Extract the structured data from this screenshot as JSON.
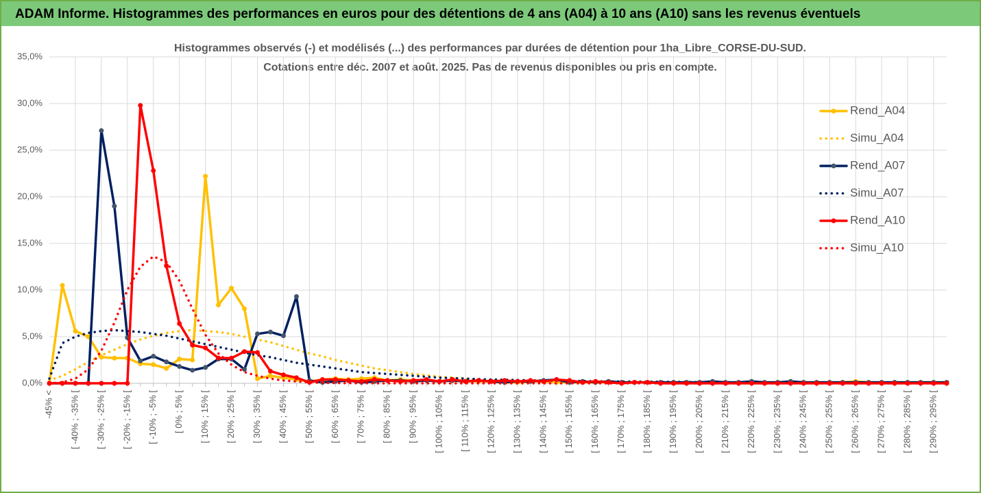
{
  "header": {
    "title": "ADAM Informe. Histogrammes des performances en euros pour des détentions de 4 ans (A04) à 10 ans (A10) sans les revenus éventuels"
  },
  "chart_data": {
    "type": "line",
    "title": [
      "Histogrammes observés (-) et modélisés (...) des performances par durées de détention pour 1ha_Libre_CORSE-DU-SUD.",
      "Cotations entre déc. 2007 et août. 2025. Pas de revenus disponibles ou pris en compte."
    ],
    "categories": [
      "-45% <",
      null,
      "[ -40% ; -35% [",
      null,
      "[ -30% ; -25% [",
      null,
      "[ -20% ; -15% [",
      null,
      "[ -10% ; -5% [",
      null,
      "[ 0% ; 5% [",
      null,
      "[ 10% ; 15% [",
      null,
      "[ 20% ; 25% [",
      null,
      "[ 30% ; 35% [",
      null,
      "[ 40% ; 45% [",
      null,
      "[ 50% ; 55% [",
      null,
      "[ 60% ; 65% [",
      null,
      "[ 70% ; 75% [",
      null,
      "[ 80% ; 85% [",
      null,
      "[ 90% ; 95% [",
      null,
      "[ 100% ; 105% [",
      null,
      "[ 110% ; 115% [",
      null,
      "[ 120% ; 125% [",
      null,
      "[ 130% ; 135% [",
      null,
      "[ 140% ; 145% [",
      null,
      "[ 150% ; 155% [",
      null,
      "[ 160% ; 165% [",
      null,
      "[ 170% ; 175% [",
      null,
      "[ 180% ; 185% [",
      null,
      "[ 190% ; 195% [",
      null,
      "[ 200% ; 205% [",
      null,
      "[ 210% ; 215% [",
      null,
      "[ 220% ; 225% [",
      null,
      "[ 230% ; 235% [",
      null,
      "[ 240% ; 245% [",
      null,
      "[ 250% ; 255% [",
      null,
      "[ 260% ; 265% [",
      null,
      "[ 270% ; 275% [",
      null,
      "[ 280% ; 285% [",
      null,
      "[ 290% ; 295% [",
      null
    ],
    "series": [
      {
        "name": "Rend_A04",
        "color": "#ffc000",
        "style": "solid",
        "values": [
          0,
          10.5,
          5.6,
          5.0,
          2.8,
          2.7,
          2.7,
          2.1,
          2.0,
          1.6,
          2.6,
          2.5,
          22.2,
          8.4,
          10.2,
          8.0,
          0.5,
          0.8,
          0.6,
          0.4,
          0.2,
          0.4,
          0.5,
          0.4,
          0.5,
          0.6,
          0.3,
          0.4,
          0.3,
          0.3,
          0.2,
          0.3,
          0.2,
          0.2,
          0.2,
          0.1,
          0.1,
          0.2,
          0.2,
          0.1,
          0.1,
          0.1,
          0.1,
          0.1,
          0.1,
          0.1,
          0.1,
          0.1,
          0.1,
          0.1,
          0.1,
          0.1,
          0.1,
          0.1,
          0.1,
          0.1,
          0.1,
          0.1,
          0.1,
          0.1,
          0.1,
          0.1,
          0.2,
          0.1,
          0.1,
          0.1,
          0.1,
          0.1,
          0.1,
          0.1
        ]
      },
      {
        "name": "Simu_A04",
        "color": "#ffc000",
        "style": "dotted",
        "values": [
          0.3,
          0.8,
          1.5,
          2.3,
          3.0,
          3.6,
          4.2,
          4.7,
          5.1,
          5.4,
          5.6,
          5.7,
          5.6,
          5.5,
          5.3,
          5.0,
          4.7,
          4.4,
          4.0,
          3.6,
          3.2,
          2.9,
          2.5,
          2.2,
          1.9,
          1.6,
          1.4,
          1.2,
          1.0,
          0.85,
          0.7,
          0.6,
          0.5,
          0.4,
          0.35,
          0.3,
          0.25,
          0.2,
          0.15,
          0.12,
          0.1,
          0.1,
          0.08,
          0.07,
          0.06,
          0.05,
          0.05,
          0.04,
          0.04,
          0.03,
          0.03,
          0.03,
          0.02,
          0.02,
          0.02,
          0.02,
          0.02,
          0.02,
          0.01,
          0.01,
          0.01,
          0.01,
          0.01,
          0.01,
          0.01,
          0.01,
          0.01,
          0.01,
          0.01,
          0.01
        ]
      },
      {
        "name": "Rend_A07",
        "color": "#002060",
        "style": "solid",
        "values": [
          0,
          0,
          0,
          0,
          27.1,
          19.0,
          4.9,
          2.4,
          2.9,
          2.3,
          1.8,
          1.4,
          1.7,
          2.6,
          2.6,
          1.5,
          5.3,
          5.5,
          5.1,
          9.3,
          0.3,
          0.1,
          0.2,
          0.3,
          0.1,
          0.2,
          0.3,
          0.3,
          0.2,
          0.3,
          0.2,
          0.3,
          0.2,
          0.3,
          0.2,
          0.1,
          0.2,
          0.2,
          0.3,
          0.4,
          0.1,
          0.2,
          0.1,
          0.2,
          0.1,
          0.1,
          0.1,
          0.1,
          0.1,
          0.1,
          0.1,
          0.2,
          0.1,
          0.1,
          0.2,
          0.1,
          0.1,
          0.2,
          0.1,
          0.1,
          0.1,
          0.1,
          0.1,
          0.1,
          0.1,
          0.1,
          0.1,
          0.1,
          0.1,
          0.1
        ]
      },
      {
        "name": "Simu_A07",
        "color": "#002060",
        "style": "dotted",
        "values": [
          0.5,
          4.3,
          5.0,
          5.4,
          5.6,
          5.7,
          5.6,
          5.5,
          5.3,
          5.1,
          4.8,
          4.5,
          4.2,
          3.9,
          3.6,
          3.3,
          3.0,
          2.8,
          2.5,
          2.2,
          2.0,
          1.8,
          1.6,
          1.4,
          1.2,
          1.1,
          1.0,
          0.9,
          0.8,
          0.7,
          0.6,
          0.55,
          0.5,
          0.45,
          0.4,
          0.38,
          0.35,
          0.32,
          0.3,
          0.28,
          0.26,
          0.24,
          0.22,
          0.2,
          0.19,
          0.18,
          0.17,
          0.16,
          0.15,
          0.14,
          0.13,
          0.12,
          0.12,
          0.11,
          0.11,
          0.1,
          0.1,
          0.1,
          0.09,
          0.09,
          0.09,
          0.08,
          0.08,
          0.08,
          0.07,
          0.07,
          0.07,
          0.07,
          0.06,
          0.06
        ]
      },
      {
        "name": "Rend_A10",
        "color": "#ff0000",
        "style": "solid",
        "values": [
          0,
          0,
          0,
          0,
          0,
          0,
          0,
          29.8,
          22.8,
          12.6,
          6.4,
          4.1,
          3.8,
          2.7,
          2.7,
          3.4,
          3.3,
          1.3,
          0.9,
          0.6,
          0.1,
          0.4,
          0.4,
          0.3,
          0.2,
          0.4,
          0.3,
          0.2,
          0.3,
          0.4,
          0.2,
          0.4,
          0.2,
          0.3,
          0.2,
          0.3,
          0.2,
          0.3,
          0.2,
          0.4,
          0.3,
          0.1,
          0.2,
          0.1,
          0,
          0.1,
          0.1,
          0,
          0,
          0,
          0,
          0,
          0,
          0,
          0,
          0,
          0,
          0,
          0,
          0,
          0,
          0,
          0,
          0,
          0,
          0,
          0,
          0,
          0,
          0
        ]
      },
      {
        "name": "Simu_A10",
        "color": "#ff0000",
        "style": "dotted",
        "values": [
          0,
          0.1,
          0.5,
          1.5,
          3.5,
          6.5,
          10.0,
          12.5,
          13.6,
          13.0,
          11.0,
          8.0,
          5.2,
          3.2,
          2.0,
          1.2,
          0.8,
          0.5,
          0.3,
          0.2,
          0.1,
          0.05,
          0.03,
          0.02,
          0.01,
          0,
          0,
          0,
          0,
          0,
          0,
          0,
          0,
          0,
          0,
          0,
          0,
          0,
          0,
          0,
          0,
          0,
          0,
          0,
          0,
          0,
          0,
          0,
          0,
          0,
          0,
          0,
          0,
          0,
          0,
          0,
          0,
          0,
          0,
          0,
          0,
          0,
          0,
          0,
          0,
          0,
          0,
          0,
          0,
          0
        ]
      }
    ],
    "ylim": [
      0,
      35
    ],
    "yticks": [
      {
        "value": 0,
        "label": "0,0%"
      },
      {
        "value": 5,
        "label": "5,0%"
      },
      {
        "value": 10,
        "label": "10,0%"
      },
      {
        "value": 15,
        "label": "15,0%"
      },
      {
        "value": 20,
        "label": "20,0%"
      },
      {
        "value": 25,
        "label": "25,0%"
      },
      {
        "value": 30,
        "label": "30,0%"
      },
      {
        "value": 35,
        "label": "35,0%"
      }
    ],
    "grid": true,
    "legend": "right"
  }
}
